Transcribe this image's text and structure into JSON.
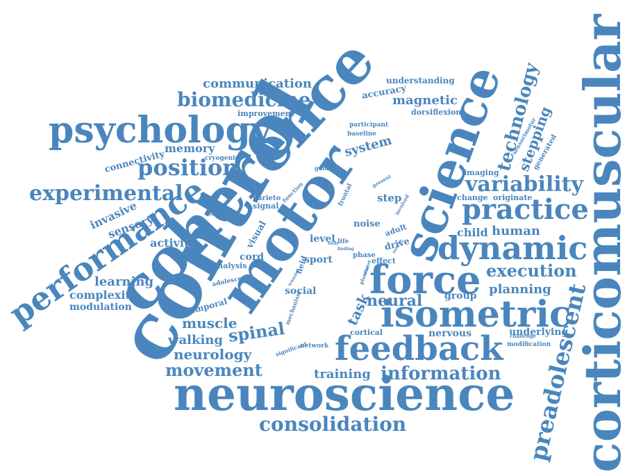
{
  "color": "#4a86bd",
  "words": [
    {
      "text": "corticomuscular"
    },
    {
      "text": "control"
    },
    {
      "text": "coherence"
    },
    {
      "text": "neuroscience"
    },
    {
      "text": "motor"
    },
    {
      "text": "science"
    },
    {
      "text": "psychology"
    },
    {
      "text": "performance"
    },
    {
      "text": "feedback"
    },
    {
      "text": "isometric"
    },
    {
      "text": "force"
    },
    {
      "text": "dynamic"
    },
    {
      "text": "practice"
    },
    {
      "text": "preadolescent"
    },
    {
      "text": "experimental"
    },
    {
      "text": "position"
    },
    {
      "text": "biomedicine"
    },
    {
      "text": "variability"
    },
    {
      "text": "technology"
    },
    {
      "text": "consolidation"
    },
    {
      "text": "information"
    },
    {
      "text": "movement"
    },
    {
      "text": "execution"
    },
    {
      "text": "neurology"
    },
    {
      "text": "spinal"
    },
    {
      "text": "muscle"
    },
    {
      "text": "walking"
    },
    {
      "text": "training"
    },
    {
      "text": "communication"
    },
    {
      "text": "stepping"
    },
    {
      "text": "learning"
    },
    {
      "text": "magnetic"
    },
    {
      "text": "sensory"
    },
    {
      "text": "invasive"
    },
    {
      "text": "planning"
    },
    {
      "text": "activity"
    },
    {
      "text": "complexity"
    },
    {
      "text": "modulation"
    },
    {
      "text": "memory"
    },
    {
      "text": "connectivity"
    },
    {
      "text": "system"
    },
    {
      "text": "neural"
    },
    {
      "text": "task"
    },
    {
      "text": "human"
    },
    {
      "text": "child"
    },
    {
      "text": "nervous"
    },
    {
      "text": "underlying"
    },
    {
      "text": "cortical"
    },
    {
      "text": "group"
    },
    {
      "text": "understanding"
    },
    {
      "text": "accuracy"
    },
    {
      "text": "improvement"
    },
    {
      "text": "dorsiflexion"
    },
    {
      "text": "participant"
    },
    {
      "text": "baseline"
    },
    {
      "text": "sensorimotor"
    },
    {
      "text": "generated"
    },
    {
      "text": "imaging"
    },
    {
      "text": "change"
    },
    {
      "text": "originate"
    },
    {
      "text": "step"
    },
    {
      "text": "noise"
    },
    {
      "text": "adult"
    },
    {
      "text": "drive"
    },
    {
      "text": "phase"
    },
    {
      "text": "effect"
    },
    {
      "text": "level"
    },
    {
      "text": "sport"
    },
    {
      "text": "field"
    },
    {
      "text": "cord"
    },
    {
      "text": "visual"
    },
    {
      "text": "analysis"
    },
    {
      "text": "adolescent"
    },
    {
      "text": "temporal"
    },
    {
      "text": "social"
    },
    {
      "text": "signal"
    },
    {
      "text": "parieto"
    },
    {
      "text": "initiation"
    },
    {
      "text": "cryogenic"
    },
    {
      "text": "guided"
    },
    {
      "text": "function"
    },
    {
      "text": "frontal"
    },
    {
      "text": "present"
    },
    {
      "text": "involved"
    },
    {
      "text": "body"
    },
    {
      "text": "life"
    },
    {
      "text": "finding"
    },
    {
      "text": "network"
    },
    {
      "text": "significant"
    },
    {
      "text": "challenge"
    },
    {
      "text": "modification"
    },
    {
      "text": "mechanism"
    },
    {
      "text": "transfer"
    },
    {
      "text": "plantar"
    },
    {
      "text": "related"
    },
    {
      "text": "source"
    }
  ]
}
